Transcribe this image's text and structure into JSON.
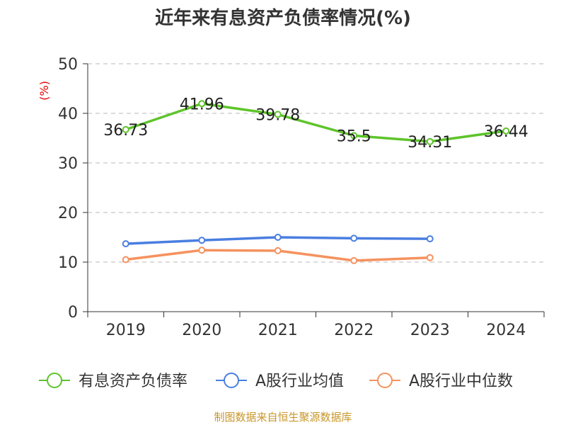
{
  "chart_data": {
    "type": "line",
    "title": "近年来有息资产负债率情况(%)",
    "ylabel": "(%)",
    "xlabel": "",
    "categories": [
      "2019",
      "2020",
      "2021",
      "2022",
      "2023",
      "2024"
    ],
    "ylim": [
      0,
      50
    ],
    "yticks": [
      0,
      10,
      20,
      30,
      40,
      50
    ],
    "grid": true,
    "legend_position": "bottom",
    "series": [
      {
        "name": "有息资产负债率",
        "color": "#5ec42a",
        "values": [
          36.73,
          41.96,
          39.78,
          35.5,
          34.31,
          36.44
        ],
        "labels": [
          "36.73",
          "41.96",
          "39.78",
          "35.5",
          "34.31",
          "36.44"
        ]
      },
      {
        "name": "A股行业均值",
        "color": "#4a7ee0",
        "values": [
          13.7,
          14.4,
          15.0,
          14.8,
          14.7,
          null
        ]
      },
      {
        "name": "A股行业中位数",
        "color": "#f5925e",
        "values": [
          10.5,
          12.4,
          12.3,
          10.3,
          10.9,
          null
        ]
      }
    ],
    "source": "制图数据来自恒生聚源数据库"
  }
}
